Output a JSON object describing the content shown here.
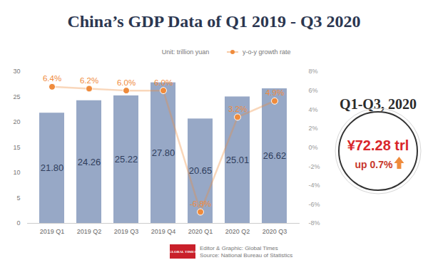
{
  "chart_data": {
    "type": "bar",
    "title": "China’s GDP Data of Q1 2019 - Q3 2020",
    "ylabel": "Unit: trillion yuan",
    "categories": [
      "2019 Q1",
      "2019 Q2",
      "2019 Q3",
      "2019 Q4",
      "2020 Q1",
      "2020 Q2",
      "2020 Q3"
    ],
    "series": [
      {
        "type": "bar",
        "color": "#97a8c6",
        "values": [
          21.8,
          24.26,
          25.22,
          27.8,
          20.65,
          25.01,
          26.62
        ],
        "value_labels": [
          "21.80",
          "24.26",
          "25.22",
          "27.80",
          "20.65",
          "25.01",
          "26.62"
        ],
        "data_labels": true
      },
      {
        "name": "y-o-y growth rate",
        "type": "line",
        "axis": "y2",
        "color": "#ef8b3c",
        "marker": "circle",
        "values": [
          6.4,
          6.2,
          6.0,
          6.0,
          -6.8,
          3.2,
          4.9
        ],
        "value_labels": [
          "6.4%",
          "6.2%",
          "6.0%",
          "6.0%",
          "-6.8%",
          "3.2%",
          "4.9%"
        ],
        "data_labels": true
      }
    ],
    "ylim": [
      0,
      30
    ],
    "yticks": [
      0,
      5,
      10,
      15,
      20,
      25,
      30
    ],
    "y2lim": [
      -8,
      8
    ],
    "y2ticks": [
      {
        "value": -8,
        "label": "-8%"
      },
      {
        "value": -6,
        "label": "-6%"
      },
      {
        "value": -4,
        "label": "-4%"
      },
      {
        "value": -2,
        "label": "-2%"
      },
      {
        "value": 0,
        "label": "0%"
      },
      {
        "value": 2,
        "label": "2%"
      },
      {
        "value": 4,
        "label": "4%"
      },
      {
        "value": 6,
        "label": "6%"
      },
      {
        "value": 8,
        "label": "8%"
      }
    ],
    "grid": false,
    "legend": "top",
    "summary": {
      "title": "Q1-Q3, 2020",
      "value": "¥72.28 trl",
      "change": "up 0.7%"
    },
    "credits": [
      "Editor & Graphic: Global Times",
      "Source: National Bureau of Statistics"
    ],
    "logo": "GLOBAL TIMES"
  }
}
